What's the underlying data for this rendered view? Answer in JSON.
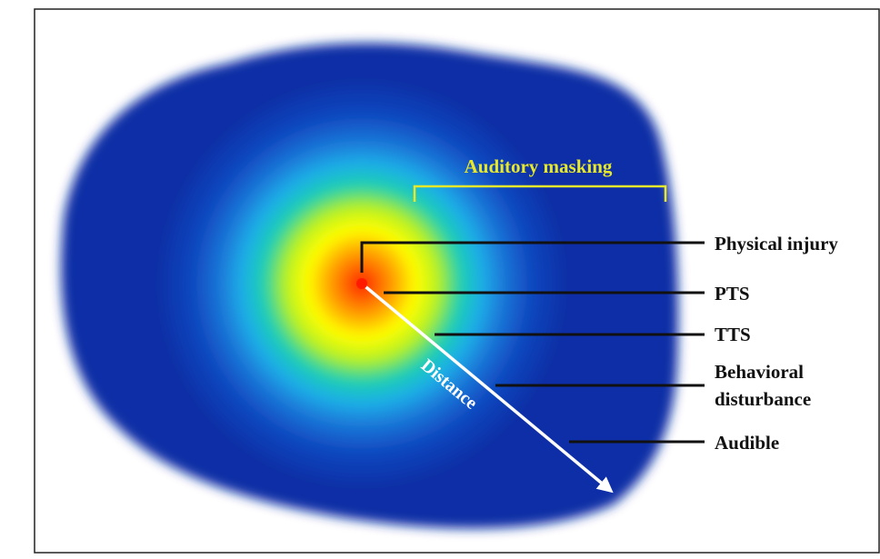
{
  "labels": {
    "auditory_masking": "Auditory masking",
    "physical_injury": "Physical injury",
    "pts": "PTS",
    "tts": "TTS",
    "behavioral_line1": "Behavioral",
    "behavioral_line2": "disturbance",
    "audible": "Audible",
    "distance": "Distance"
  },
  "colors": {
    "outer_blue": "#0a2fa6",
    "masking_yellow": "#e8e82a",
    "line_black": "#111111",
    "arrow_white": "#ffffff",
    "source_red": "#ff1a00"
  }
}
